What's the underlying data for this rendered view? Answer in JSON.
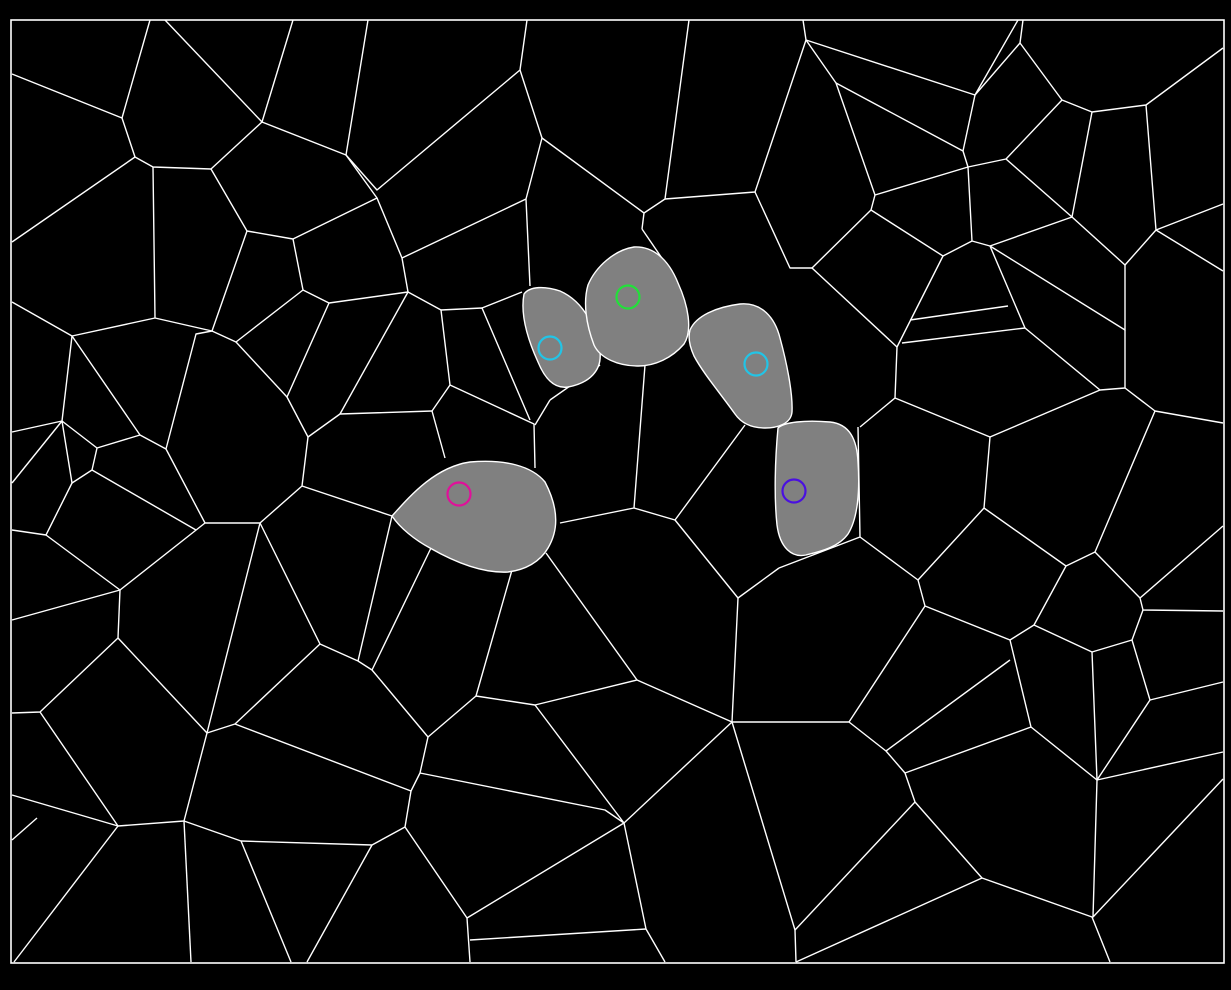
{
  "puzzle": {
    "colors": {
      "background": "#000000",
      "lines": "#ffffff",
      "selected_fill": "#808080"
    },
    "markers": [
      {
        "name": "marker-magenta",
        "color": "#e0109a"
      },
      {
        "name": "marker-cyan-1",
        "color": "#22c4e6"
      },
      {
        "name": "marker-green",
        "color": "#22e03a"
      },
      {
        "name": "marker-cyan-2",
        "color": "#22c4e6"
      },
      {
        "name": "marker-purple",
        "color": "#4a10e0"
      }
    ]
  }
}
